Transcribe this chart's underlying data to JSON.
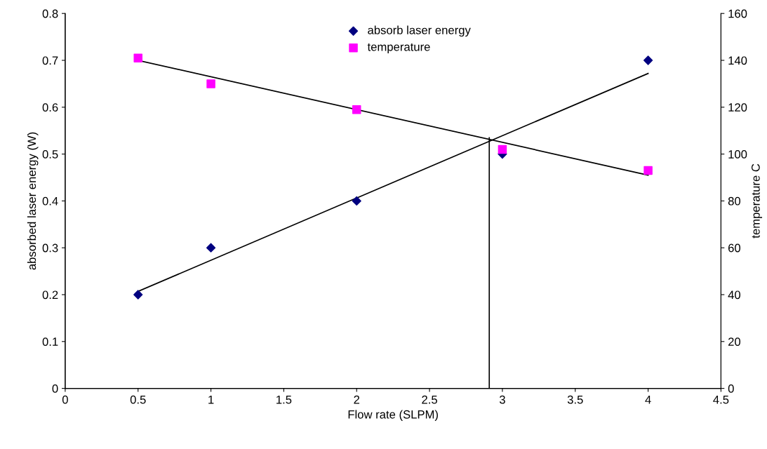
{
  "chart_data": {
    "type": "scatter",
    "xlabel": "Flow rate (SLPM)",
    "ylabel": "absorbed laser energy (W)",
    "y2label": "temperature C",
    "xlim": [
      0,
      4.5
    ],
    "xticks": [
      0,
      0.5,
      1,
      1.5,
      2,
      2.5,
      3,
      3.5,
      4,
      4.5
    ],
    "ylim": [
      0,
      0.8
    ],
    "yticks": [
      0,
      0.1,
      0.2,
      0.3,
      0.4,
      0.5,
      0.6,
      0.7,
      0.8
    ],
    "y2lim": [
      0,
      160
    ],
    "y2ticks": [
      0,
      20,
      40,
      60,
      80,
      100,
      120,
      140,
      160
    ],
    "grid": false,
    "legend": "top",
    "series": [
      {
        "name": "absorb laser energy",
        "marker": "diamond",
        "color": "#000080",
        "x": [
          0.5,
          1,
          2,
          3,
          4
        ],
        "values": [
          0.2,
          0.3,
          0.4,
          0.5,
          0.7
        ]
      },
      {
        "name": "temperature",
        "marker": "square",
        "color": "#ff00ff",
        "axis": "y2",
        "x": [
          0.5,
          1,
          2,
          3,
          4
        ],
        "values": [
          141,
          130,
          119,
          102,
          93
        ]
      },
      {
        "type": "line",
        "color": "#000000",
        "x": [
          0.5,
          4
        ],
        "values": [
          0.207,
          0.672
        ]
      },
      {
        "type": "line",
        "color": "#000000",
        "axis": "y2",
        "x": [
          0.5,
          4
        ],
        "values": [
          140,
          91
        ]
      },
      {
        "type": "line",
        "color": "#000000",
        "x": [
          2.91,
          2.91
        ],
        "values": [
          0,
          0.535
        ]
      }
    ]
  }
}
